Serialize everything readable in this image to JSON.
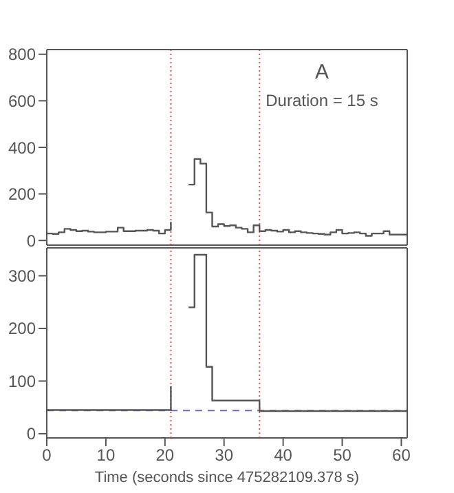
{
  "chart_data": [
    {
      "type": "step",
      "annotations": [
        "A",
        "Duration = 15 s"
      ],
      "xlim": [
        0,
        61
      ],
      "xticks": [
        0,
        10,
        20,
        30,
        40,
        50,
        60
      ],
      "ylim": [
        -20,
        820
      ],
      "yticks": [
        0,
        200,
        400,
        600,
        800
      ],
      "tick_labels": "y",
      "grid": false,
      "legend": false,
      "series": [
        {
          "color": "#555555",
          "x": [
            0,
            1,
            2,
            3,
            4,
            5,
            6,
            7,
            8,
            9,
            10,
            11,
            12,
            13,
            14,
            15,
            16,
            17,
            18,
            19,
            20,
            21,
            22,
            23,
            24,
            25,
            26,
            27,
            28,
            29,
            30,
            31,
            32,
            33,
            34,
            35,
            36,
            37,
            38,
            39,
            40,
            41,
            42,
            43,
            44,
            45,
            46,
            47,
            48,
            49,
            50,
            51,
            52,
            53,
            54,
            55,
            56,
            57,
            58,
            59,
            60,
            61
          ],
          "values": [
            30,
            28,
            35,
            50,
            45,
            40,
            42,
            38,
            35,
            35,
            38,
            38,
            55,
            40,
            40,
            42,
            42,
            45,
            42,
            30,
            45,
            80,
            null,
            null,
            240,
            350,
            330,
            120,
            60,
            70,
            62,
            65,
            55,
            50,
            35,
            65,
            40,
            45,
            42,
            38,
            45,
            35,
            40,
            35,
            32,
            30,
            28,
            25,
            35,
            45,
            30,
            32,
            35,
            30,
            20,
            30,
            30,
            40,
            25,
            25,
            25,
            25
          ]
        }
      ],
      "ref_lines": [
        {
          "axis": "x",
          "value": 21,
          "color": "#ff4444",
          "line_style": "dotted"
        },
        {
          "axis": "x",
          "value": 36,
          "color": "#ff4444",
          "line_style": "dotted"
        }
      ]
    },
    {
      "type": "step",
      "xlabel": "Time (seconds since 475282109.378 s)",
      "xlim": [
        0,
        61
      ],
      "xticks": [
        0,
        10,
        20,
        30,
        40,
        50,
        60
      ],
      "ylim": [
        -8,
        353
      ],
      "yticks": [
        0,
        100,
        200,
        300
      ],
      "grid": false,
      "legend": false,
      "series": [
        {
          "color": "#555555",
          "x": [
            0,
            21,
            22,
            24,
            25,
            27,
            28,
            36,
            61
          ],
          "values": [
            45,
            90,
            null,
            240,
            340,
            127,
            63,
            43,
            43
          ]
        }
      ],
      "ref_lines": [
        {
          "axis": "x",
          "value": 21,
          "color": "#ff4444",
          "line_style": "dotted"
        },
        {
          "axis": "x",
          "value": 36,
          "color": "#ff4444",
          "line_style": "dotted"
        },
        {
          "axis": "y",
          "value": 44,
          "color": "#6666dd",
          "line_style": "dashed"
        }
      ]
    }
  ]
}
